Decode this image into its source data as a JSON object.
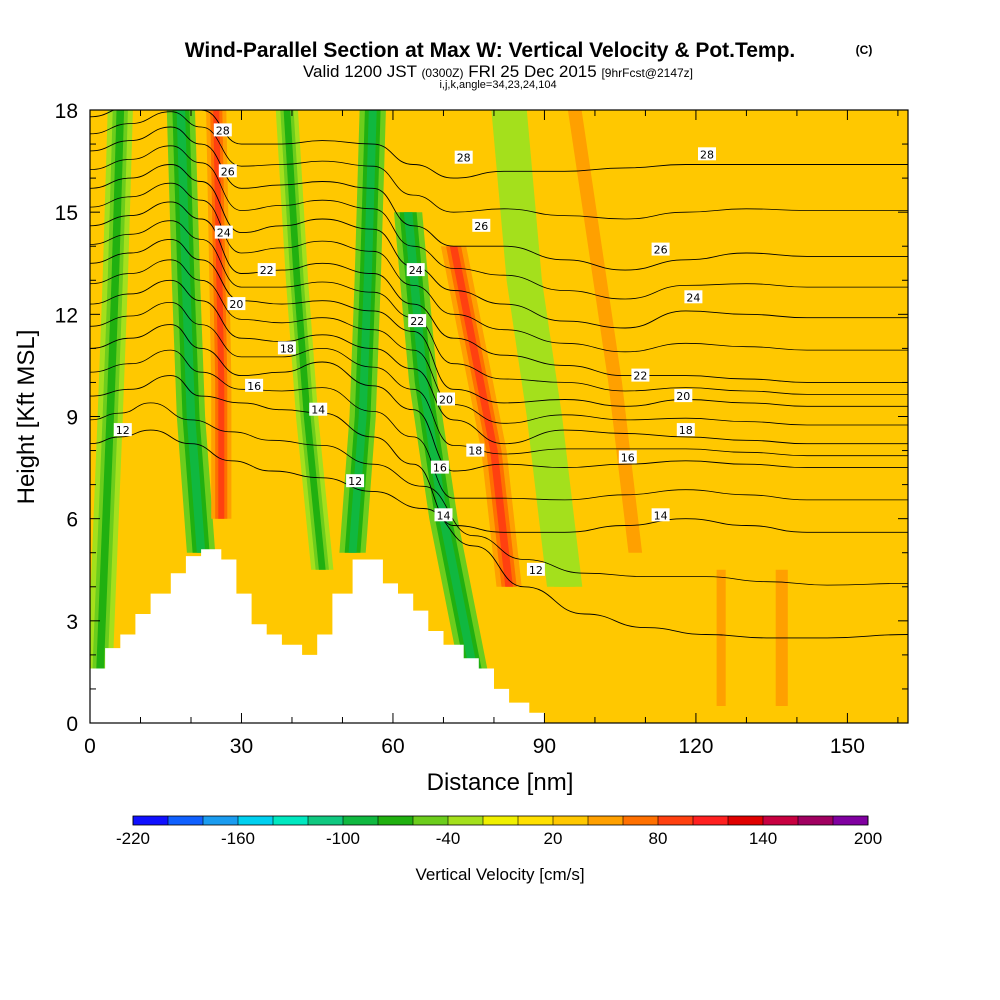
{
  "header": {
    "title": "Wind-Parallel Section at Max W: Vertical Velocity & Pot.Temp.",
    "copyright": "(C)",
    "valid_prefix": "Valid 1200 JST",
    "valid_utc": "(0300Z)",
    "valid_date": "FRI 25 Dec 2015",
    "forecast": "[9hrFcst@2147z]",
    "grid_info": "i,j,k,angle=34,23,24,104"
  },
  "chart_data": {
    "type": "heatmap",
    "xlabel": "Distance [nm]",
    "ylabel": "Height [Kft MSL]",
    "xlim": [
      0,
      162
    ],
    "ylim": [
      0,
      18
    ],
    "xticks": [
      0,
      30,
      60,
      90,
      120,
      150
    ],
    "yticks": [
      0,
      3,
      6,
      9,
      12,
      15,
      18
    ],
    "colorbar": {
      "label": "Vertical Velocity [cm/s]",
      "tick_labels": [
        -220,
        -160,
        -100,
        -40,
        20,
        80,
        140,
        200
      ],
      "colors": [
        "#1010ff",
        "#1060ff",
        "#1a9cf0",
        "#00d0f0",
        "#00e8c0",
        "#10c880",
        "#10b840",
        "#20b010",
        "#6ccd1c",
        "#a4e01c",
        "#f0f000",
        "#ffe000",
        "#ffc800",
        "#ffa000",
        "#ff7000",
        "#ff4010",
        "#ff2020",
        "#e00000",
        "#c80040",
        "#a00060",
        "#8000a0"
      ]
    },
    "series": [
      {
        "name": "12",
        "x": [
          0,
          6,
          12,
          20,
          28,
          36,
          46,
          56,
          66,
          76,
          86,
          98,
          110,
          122,
          134,
          146,
          162
        ],
        "y": [
          8.2,
          8.4,
          8.6,
          8.2,
          7.7,
          7.4,
          7.2,
          6.8,
          6.3,
          5.2,
          4.0,
          3.2,
          2.8,
          2.6,
          2.5,
          2.5,
          2.6
        ]
      },
      {
        "name": "14",
        "x": [
          0,
          8,
          16,
          22,
          30,
          38,
          46,
          56,
          64,
          72,
          82,
          94,
          106,
          118,
          130,
          142,
          162
        ],
        "y": [
          9.6,
          9.8,
          10.2,
          9.6,
          9.4,
          9.2,
          9.1,
          8.4,
          7.6,
          5.8,
          5.6,
          5.6,
          5.8,
          6.0,
          5.8,
          5.6,
          5.6
        ]
      },
      {
        "name": "16",
        "x": [
          0,
          8,
          16,
          22,
          30,
          38,
          46,
          56,
          64,
          72,
          82,
          94,
          106,
          118,
          130,
          142,
          162
        ],
        "y": [
          11.0,
          11.3,
          11.7,
          11.0,
          10.2,
          10.3,
          10.6,
          9.9,
          9.2,
          7.4,
          7.6,
          7.5,
          7.6,
          7.7,
          7.6,
          7.5,
          7.5
        ]
      },
      {
        "name": "18",
        "x": [
          0,
          8,
          16,
          22,
          30,
          38,
          46,
          56,
          64,
          72,
          82,
          94,
          106,
          118,
          130,
          142,
          162
        ],
        "y": [
          12.3,
          12.6,
          13.0,
          12.4,
          11.3,
          11.2,
          11.4,
          11.0,
          10.4,
          8.9,
          8.2,
          8.6,
          8.5,
          8.4,
          8.3,
          8.2,
          8.2
        ]
      },
      {
        "name": "20",
        "x": [
          0,
          8,
          16,
          22,
          30,
          38,
          46,
          56,
          64,
          72,
          82,
          94,
          106,
          118,
          130,
          142,
          162
        ],
        "y": [
          13.5,
          13.8,
          14.2,
          13.6,
          12.4,
          12.3,
          12.4,
          12.1,
          11.5,
          9.8,
          9.4,
          9.5,
          9.3,
          9.5,
          9.4,
          9.3,
          9.3
        ]
      },
      {
        "name": "22",
        "x": [
          0,
          8,
          16,
          22,
          30,
          38,
          46,
          56,
          64,
          72,
          82,
          94,
          106,
          118,
          130,
          142,
          162
        ],
        "y": [
          14.6,
          14.9,
          15.3,
          14.8,
          13.2,
          13.3,
          13.5,
          13.2,
          12.3,
          11.3,
          10.8,
          10.5,
          10.2,
          10.2,
          10.1,
          10.0,
          10.0
        ]
      },
      {
        "name": "24",
        "x": [
          0,
          8,
          16,
          22,
          30,
          38,
          46,
          56,
          64,
          72,
          82,
          94,
          106,
          118,
          130,
          142,
          162
        ],
        "y": [
          15.7,
          16.0,
          16.4,
          15.9,
          14.4,
          14.6,
          14.8,
          14.5,
          13.4,
          12.7,
          12.3,
          11.8,
          11.6,
          12.1,
          12.0,
          11.9,
          11.9
        ]
      },
      {
        "name": "26",
        "x": [
          0,
          8,
          16,
          22,
          30,
          38,
          46,
          56,
          64,
          72,
          82,
          94,
          106,
          118,
          130,
          142,
          162
        ],
        "y": [
          16.8,
          17.1,
          17.5,
          17.0,
          15.7,
          15.8,
          15.9,
          15.7,
          14.6,
          14.0,
          14.0,
          13.6,
          13.3,
          13.6,
          13.8,
          13.7,
          13.7
        ]
      },
      {
        "name": "28",
        "x": [
          0,
          8,
          16,
          22,
          30,
          38,
          46,
          56,
          64,
          72,
          82,
          94,
          106,
          118,
          130,
          142,
          162
        ],
        "y": [
          17.8,
          18.1,
          18.4,
          18.0,
          17.0,
          17.0,
          17.1,
          17.0,
          16.4,
          16.0,
          16.2,
          16.2,
          16.3,
          16.4,
          16.4,
          16.4,
          16.4
        ]
      }
    ],
    "contour_label_positions": [
      {
        "text": "12",
        "x": 6.5,
        "y": 8.6
      },
      {
        "text": "12",
        "x": 52.5,
        "y": 7.1
      },
      {
        "text": "12",
        "x": 88.3,
        "y": 4.5
      },
      {
        "text": "14",
        "x": 45.2,
        "y": 9.2
      },
      {
        "text": "14",
        "x": 70.0,
        "y": 6.1
      },
      {
        "text": "14",
        "x": 113.0,
        "y": 6.1
      },
      {
        "text": "16",
        "x": 32.5,
        "y": 9.9
      },
      {
        "text": "16",
        "x": 69.3,
        "y": 7.5
      },
      {
        "text": "16",
        "x": 106.5,
        "y": 7.8
      },
      {
        "text": "18",
        "x": 39.0,
        "y": 11.0
      },
      {
        "text": "18",
        "x": 76.3,
        "y": 8.0
      },
      {
        "text": "18",
        "x": 118.0,
        "y": 8.6
      },
      {
        "text": "20",
        "x": 29.0,
        "y": 12.3
      },
      {
        "text": "20",
        "x": 70.5,
        "y": 9.5
      },
      {
        "text": "20",
        "x": 117.5,
        "y": 9.6
      },
      {
        "text": "22",
        "x": 35.0,
        "y": 13.3
      },
      {
        "text": "22",
        "x": 64.8,
        "y": 11.8
      },
      {
        "text": "22",
        "x": 109.0,
        "y": 10.2
      },
      {
        "text": "24",
        "x": 26.5,
        "y": 14.4
      },
      {
        "text": "24",
        "x": 64.5,
        "y": 13.3
      },
      {
        "text": "24",
        "x": 119.5,
        "y": 12.5
      },
      {
        "text": "26",
        "x": 27.3,
        "y": 16.2
      },
      {
        "text": "26",
        "x": 77.5,
        "y": 14.6
      },
      {
        "text": "26",
        "x": 113.0,
        "y": 13.9
      },
      {
        "text": "28",
        "x": 26.3,
        "y": 17.4
      },
      {
        "text": "28",
        "x": 74.0,
        "y": 16.6
      },
      {
        "text": "28",
        "x": 122.2,
        "y": 16.7
      }
    ],
    "terrain": {
      "x": [
        0,
        3,
        3,
        6,
        6,
        9,
        9,
        12,
        12,
        16,
        16,
        19,
        19,
        22,
        22,
        26,
        26,
        29,
        29,
        32,
        32,
        35,
        35,
        38,
        38,
        42,
        42,
        45,
        45,
        48,
        48,
        52,
        52,
        58,
        58,
        61,
        61,
        64,
        64,
        67,
        67,
        70,
        70,
        74,
        74,
        77,
        77,
        80,
        80,
        83,
        83,
        87,
        87,
        90,
        90
      ],
      "y": [
        1.6,
        1.6,
        2.2,
        2.2,
        2.6,
        2.6,
        3.2,
        3.2,
        3.8,
        3.8,
        4.4,
        4.4,
        4.9,
        4.9,
        5.1,
        5.1,
        4.8,
        4.8,
        3.8,
        3.8,
        2.9,
        2.9,
        2.6,
        2.6,
        2.3,
        2.3,
        2.0,
        2.0,
        2.6,
        2.6,
        3.8,
        3.8,
        4.8,
        4.8,
        4.1,
        4.1,
        3.8,
        3.8,
        3.3,
        3.3,
        2.7,
        2.7,
        2.3,
        2.3,
        1.9,
        1.9,
        1.6,
        1.6,
        1.0,
        1.0,
        0.6,
        0.6,
        0.3,
        0.3,
        0.0
      ]
    },
    "wfield": {
      "background": 30,
      "bands": [
        {
          "x": [
            2,
            4,
            5,
            6
          ],
          "y": [
            1.6,
            9,
            13,
            18
          ],
          "value": -70,
          "width": 2.5
        },
        {
          "x": [
            22,
            20,
            19,
            18
          ],
          "y": [
            5,
            9,
            13,
            18
          ],
          "value": -90,
          "width": 2.8
        },
        {
          "x": [
            26,
            26,
            25.5,
            25
          ],
          "y": [
            6,
            10,
            14,
            18
          ],
          "value": 95,
          "width": 2.0
        },
        {
          "x": [
            46,
            43,
            41,
            39
          ],
          "y": [
            4.5,
            9,
            13,
            18
          ],
          "value": -65,
          "width": 2.2
        },
        {
          "x": [
            52,
            54,
            55,
            56
          ],
          "y": [
            5,
            9,
            13,
            18
          ],
          "value": -85,
          "width": 2.6
        },
        {
          "x": [
            76,
            70,
            66,
            63
          ],
          "y": [
            1.5,
            6,
            10,
            15
          ],
          "value": -85,
          "width": 2.8
        },
        {
          "x": [
            83,
            80,
            76,
            72
          ],
          "y": [
            4,
            8,
            11,
            14
          ],
          "value": 85,
          "width": 2.5
        },
        {
          "x": [
            94,
            90,
            86,
            83
          ],
          "y": [
            4,
            9,
            13,
            18
          ],
          "value": -40,
          "width": 3.5
        },
        {
          "x": [
            108,
            104,
            100,
            96
          ],
          "y": [
            5,
            10,
            14,
            18
          ],
          "value": 45,
          "width": 4.5
        },
        {
          "x": [
            125,
            125,
            125,
            125
          ],
          "y": [
            0.5,
            2,
            3.5,
            4.5
          ],
          "value": 45,
          "width": 3.0
        },
        {
          "x": [
            137,
            137,
            137,
            137
          ],
          "y": [
            0.5,
            2,
            3.5,
            4.5
          ],
          "value": 45,
          "width": 4.0
        }
      ]
    }
  }
}
